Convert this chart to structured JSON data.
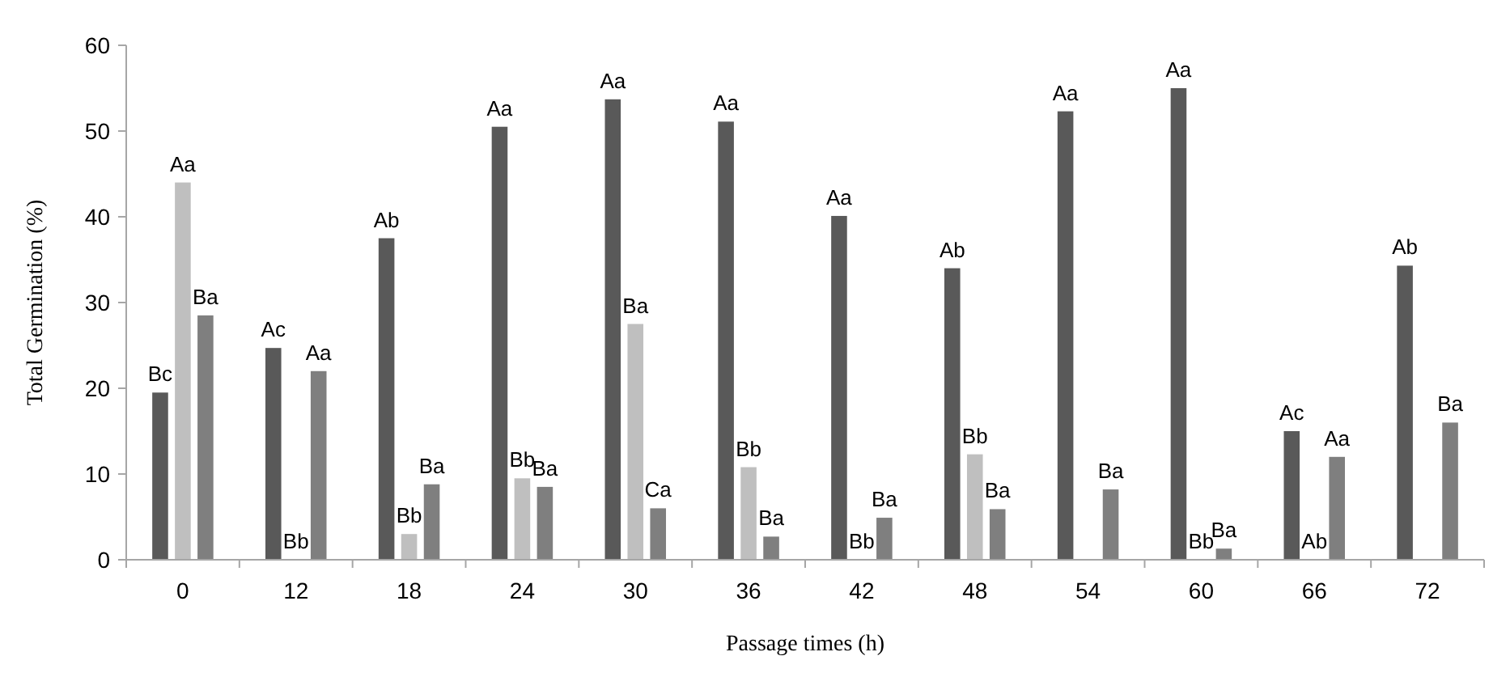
{
  "chart_data": {
    "type": "bar",
    "xlabel": "Passage times (h)",
    "ylabel": "Total Germination (%)",
    "categories": [
      "0",
      "12",
      "18",
      "24",
      "30",
      "36",
      "42",
      "48",
      "54",
      "60",
      "66",
      "72"
    ],
    "series": [
      {
        "color": "#595959",
        "values": [
          19.5,
          24.7,
          37.5,
          50.5,
          53.7,
          51.1,
          40.1,
          34.0,
          52.3,
          55.0,
          15.0,
          34.3
        ],
        "value_labels": [
          "Bc",
          "Ac",
          "Ab",
          "Aa",
          "Aa",
          "Aa",
          "Aa",
          "Ab",
          "Aa",
          "Aa",
          "Ac",
          "Ab"
        ]
      },
      {
        "color": "#bfbfbf",
        "values": [
          44.0,
          0,
          3.0,
          9.5,
          27.5,
          10.8,
          0,
          12.3,
          null,
          0,
          0,
          null
        ],
        "value_labels": [
          "Aa",
          "Bb",
          "Bb",
          "Bb",
          "Ba",
          "Bb",
          "Bb",
          "Bb",
          null,
          "Bb",
          "Ab",
          null
        ]
      },
      {
        "color": "#7f7f7f",
        "values": [
          28.5,
          22.0,
          8.8,
          8.5,
          6.0,
          2.7,
          4.9,
          5.9,
          8.2,
          1.3,
          12.0,
          16.0
        ],
        "value_labels": [
          "Ba",
          "Aa",
          "Ba",
          "Ba",
          "Ca",
          "Ba",
          "Ba",
          "Ba",
          "Ba",
          "Ba",
          "Aa",
          "Ba"
        ]
      }
    ],
    "ylim": [
      0,
      60
    ],
    "yticks": [
      0,
      10,
      20,
      30,
      40,
      50,
      60
    ],
    "grid": false
  }
}
